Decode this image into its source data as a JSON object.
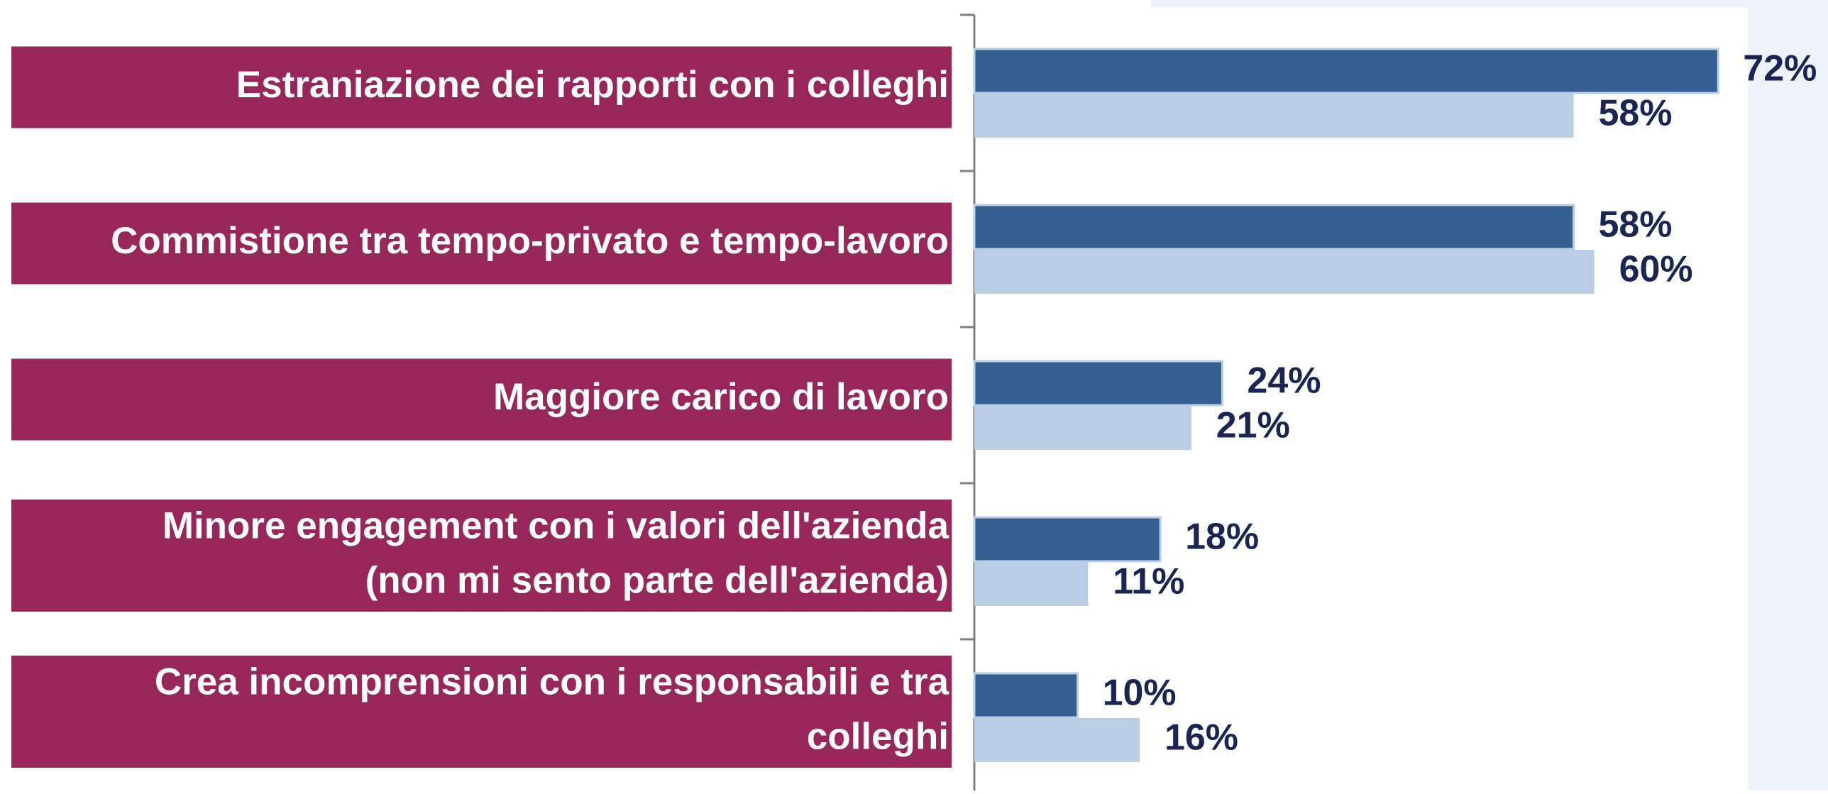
{
  "chart_data": {
    "type": "bar",
    "orientation": "horizontal",
    "categories": [
      "Estraniazione dei rapporti con i colleghi",
      "Commistione tra tempo-privato e tempo-lavoro",
      "Maggiore carico di lavoro",
      "Minore engagement con i valori dell'azienda\n(non mi sento parte dell'azienda)",
      "Crea incomprensioni con i responsabili e tra\ncolleghi"
    ],
    "series": [
      {
        "color": "#365f91",
        "values": [
          72,
          58,
          24,
          18,
          10
        ],
        "value_labels": [
          "72%",
          "58%",
          "24%",
          "18%",
          "10%"
        ]
      },
      {
        "color": "#b9cde5",
        "values": [
          58,
          60,
          21,
          11,
          16
        ],
        "value_labels": [
          "58%",
          "60%",
          "21%",
          "11%",
          "16%"
        ]
      }
    ],
    "xlim": [
      0,
      100
    ],
    "grid": false
  }
}
